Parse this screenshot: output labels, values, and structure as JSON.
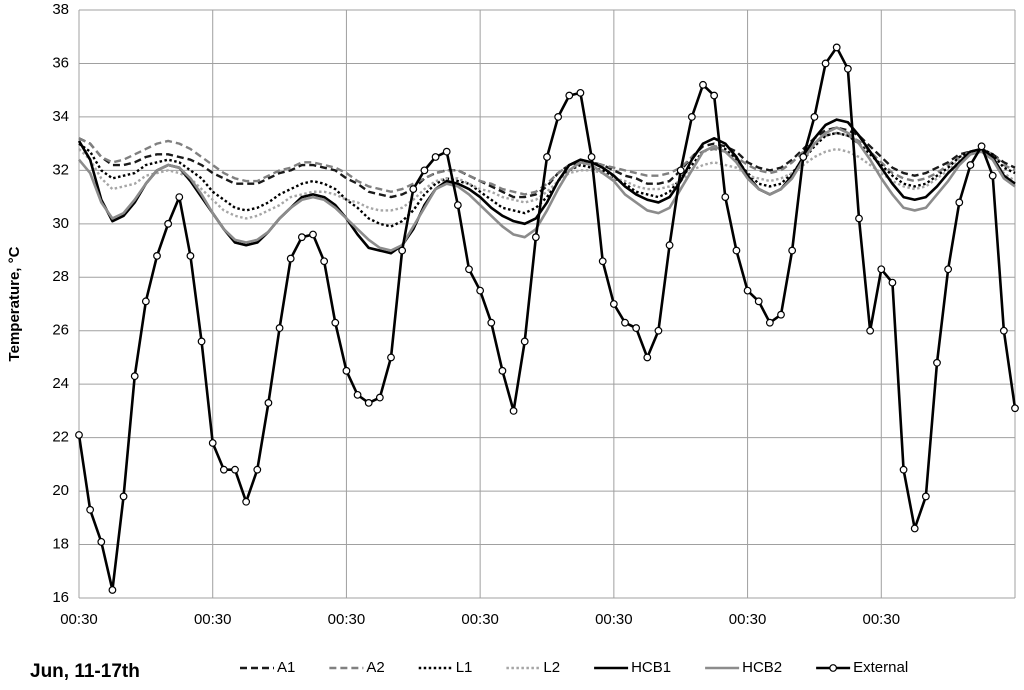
{
  "chart_data": {
    "type": "line",
    "ylabel": "Temperature, °C",
    "xlabel": "Jun, 11-17th",
    "xlim": [
      0,
      168
    ],
    "xticks": [
      {
        "value": 0,
        "label": "00:30"
      },
      {
        "value": 24,
        "label": "00:30"
      },
      {
        "value": 48,
        "label": "00:30"
      },
      {
        "value": 72,
        "label": "00:30"
      },
      {
        "value": 96,
        "label": "00:30"
      },
      {
        "value": 120,
        "label": "00:30"
      },
      {
        "value": 144,
        "label": "00:30"
      }
    ],
    "ylim": [
      16,
      38
    ],
    "yticks": [
      16,
      18,
      20,
      22,
      24,
      26,
      28,
      30,
      32,
      34,
      36,
      38
    ],
    "grid": true,
    "legend": "bottom",
    "x": [
      0,
      2,
      4,
      6,
      8,
      10,
      12,
      14,
      16,
      18,
      20,
      22,
      24,
      26,
      28,
      30,
      32,
      34,
      36,
      38,
      40,
      42,
      44,
      46,
      48,
      50,
      52,
      54,
      56,
      58,
      60,
      62,
      64,
      66,
      68,
      70,
      72,
      74,
      76,
      78,
      80,
      82,
      84,
      86,
      88,
      90,
      92,
      94,
      96,
      98,
      100,
      102,
      104,
      106,
      108,
      110,
      112,
      114,
      116,
      118,
      120,
      122,
      124,
      126,
      128,
      130,
      132,
      134,
      136,
      138,
      140,
      142,
      144,
      146,
      148,
      150,
      152,
      154,
      156,
      158,
      160,
      162,
      164,
      166,
      168
    ],
    "series": [
      {
        "name": "A1",
        "color": "#1a1a1a",
        "style": "dashed",
        "values": [
          33.2,
          33.0,
          32.5,
          32.2,
          32.2,
          32.3,
          32.5,
          32.6,
          32.6,
          32.5,
          32.4,
          32.2,
          31.9,
          31.7,
          31.5,
          31.5,
          31.5,
          31.7,
          31.9,
          32.0,
          32.2,
          32.2,
          32.1,
          32.0,
          31.7,
          31.5,
          31.2,
          31.1,
          31.0,
          31.1,
          31.3,
          31.7,
          31.9,
          32.0,
          32.0,
          31.8,
          31.6,
          31.4,
          31.2,
          31.0,
          31.0,
          31.1,
          31.4,
          31.9,
          32.2,
          32.3,
          32.3,
          32.2,
          32.0,
          31.8,
          31.7,
          31.5,
          31.5,
          31.6,
          32.0,
          32.5,
          32.9,
          33.0,
          32.9,
          32.7,
          32.3,
          32.1,
          32.0,
          32.1,
          32.4,
          32.8,
          33.2,
          33.5,
          33.6,
          33.5,
          33.3,
          32.9,
          32.5,
          32.1,
          31.9,
          31.8,
          31.9,
          32.1,
          32.3,
          32.6,
          32.7,
          32.8,
          32.6,
          32.3,
          32.1
        ]
      },
      {
        "name": "A2",
        "color": "#808080",
        "style": "dashed",
        "values": [
          33.2,
          33.0,
          32.5,
          32.3,
          32.4,
          32.6,
          32.8,
          33.0,
          33.1,
          33.0,
          32.8,
          32.5,
          32.2,
          31.9,
          31.7,
          31.6,
          31.6,
          31.8,
          32.0,
          32.1,
          32.3,
          32.3,
          32.2,
          32.1,
          31.9,
          31.6,
          31.4,
          31.3,
          31.2,
          31.3,
          31.5,
          31.7,
          31.9,
          32.0,
          32.0,
          31.8,
          31.6,
          31.5,
          31.3,
          31.2,
          31.1,
          31.2,
          31.5,
          31.9,
          32.2,
          32.3,
          32.3,
          32.2,
          32.1,
          32.0,
          31.9,
          31.8,
          31.8,
          31.9,
          32.1,
          32.5,
          32.7,
          32.8,
          32.7,
          32.5,
          32.2,
          32.0,
          31.9,
          32.0,
          32.3,
          32.7,
          33.0,
          33.3,
          33.4,
          33.3,
          33.1,
          32.7,
          32.3,
          31.9,
          31.7,
          31.6,
          31.7,
          31.9,
          32.2,
          32.5,
          32.7,
          32.8,
          32.6,
          32.2,
          32.0
        ]
      },
      {
        "name": "L1",
        "color": "#000000",
        "style": "dotted",
        "values": [
          33.0,
          32.7,
          32.0,
          31.7,
          31.8,
          31.9,
          32.2,
          32.3,
          32.4,
          32.3,
          32.0,
          31.7,
          31.2,
          30.9,
          30.6,
          30.5,
          30.6,
          30.8,
          31.1,
          31.3,
          31.5,
          31.6,
          31.5,
          31.3,
          30.9,
          30.6,
          30.2,
          30.0,
          29.9,
          30.1,
          30.5,
          31.1,
          31.5,
          31.7,
          31.6,
          31.5,
          31.2,
          30.9,
          30.6,
          30.5,
          30.4,
          30.6,
          31.0,
          31.6,
          32.0,
          32.2,
          32.1,
          32.0,
          31.7,
          31.5,
          31.2,
          31.1,
          31.0,
          31.2,
          31.7,
          32.2,
          32.7,
          32.9,
          32.8,
          32.4,
          31.9,
          31.5,
          31.4,
          31.5,
          31.9,
          32.4,
          32.9,
          33.3,
          33.4,
          33.3,
          33.0,
          32.6,
          32.2,
          31.8,
          31.5,
          31.4,
          31.5,
          31.8,
          32.1,
          32.5,
          32.7,
          32.8,
          32.6,
          32.1,
          31.9
        ]
      },
      {
        "name": "L2",
        "color": "#a6a6a6",
        "style": "dotted",
        "values": [
          32.8,
          32.4,
          31.7,
          31.3,
          31.4,
          31.5,
          31.8,
          31.9,
          32.0,
          31.9,
          31.7,
          31.3,
          30.9,
          30.5,
          30.3,
          30.2,
          30.3,
          30.5,
          30.7,
          31.0,
          31.1,
          31.2,
          31.2,
          31.1,
          30.9,
          30.8,
          30.6,
          30.5,
          30.5,
          30.6,
          30.9,
          31.3,
          31.6,
          31.7,
          31.7,
          31.5,
          31.3,
          31.2,
          31.0,
          30.9,
          30.8,
          30.9,
          31.2,
          31.6,
          31.9,
          32.0,
          32.0,
          31.9,
          31.7,
          31.6,
          31.4,
          31.3,
          31.3,
          31.4,
          31.6,
          32.0,
          32.2,
          32.3,
          32.2,
          32.1,
          31.8,
          31.7,
          31.6,
          31.7,
          31.9,
          32.2,
          32.5,
          32.7,
          32.8,
          32.7,
          32.5,
          32.2,
          31.9,
          31.6,
          31.4,
          31.3,
          31.4,
          31.7,
          32.0,
          32.4,
          32.6,
          32.7,
          32.4,
          31.9,
          31.6
        ]
      },
      {
        "name": "HCB1",
        "color": "#000000",
        "style": "solid",
        "values": [
          33.1,
          32.4,
          30.9,
          30.1,
          30.3,
          30.8,
          31.5,
          32.0,
          32.2,
          32.1,
          31.6,
          31.0,
          30.4,
          29.8,
          29.3,
          29.2,
          29.3,
          29.7,
          30.2,
          30.6,
          31.0,
          31.1,
          31.0,
          30.7,
          30.2,
          29.6,
          29.1,
          29.0,
          28.9,
          29.2,
          29.8,
          30.7,
          31.3,
          31.6,
          31.5,
          31.3,
          31.0,
          30.6,
          30.3,
          30.1,
          30.0,
          30.2,
          30.8,
          31.6,
          32.2,
          32.4,
          32.3,
          32.1,
          31.8,
          31.4,
          31.1,
          30.9,
          30.8,
          31.0,
          31.6,
          32.4,
          33.0,
          33.2,
          33.0,
          32.5,
          31.8,
          31.3,
          31.1,
          31.3,
          31.8,
          32.5,
          33.2,
          33.7,
          33.9,
          33.8,
          33.3,
          32.7,
          32.1,
          31.5,
          31.0,
          30.9,
          31.0,
          31.4,
          31.9,
          32.3,
          32.7,
          32.8,
          32.5,
          31.8,
          31.5
        ]
      },
      {
        "name": "HCB2",
        "color": "#8c8c8c",
        "style": "solid",
        "values": [
          32.4,
          31.9,
          30.8,
          30.2,
          30.4,
          30.9,
          31.5,
          32.0,
          32.2,
          32.1,
          31.7,
          31.1,
          30.4,
          29.8,
          29.4,
          29.3,
          29.4,
          29.7,
          30.2,
          30.6,
          30.9,
          31.0,
          30.9,
          30.6,
          30.2,
          29.8,
          29.4,
          29.1,
          29.0,
          29.2,
          29.9,
          30.6,
          31.3,
          31.5,
          31.4,
          31.1,
          30.7,
          30.3,
          29.9,
          29.6,
          29.5,
          29.8,
          30.5,
          31.3,
          32.0,
          32.3,
          32.2,
          31.9,
          31.6,
          31.1,
          30.8,
          30.5,
          30.4,
          30.6,
          31.3,
          32.0,
          32.7,
          32.9,
          32.7,
          32.3,
          31.7,
          31.3,
          31.1,
          31.3,
          31.7,
          32.4,
          33.0,
          33.4,
          33.6,
          33.4,
          33.0,
          32.4,
          31.7,
          31.1,
          30.6,
          30.5,
          30.6,
          31.1,
          31.6,
          32.2,
          32.6,
          32.7,
          32.4,
          31.7,
          31.4
        ]
      },
      {
        "name": "External",
        "color": "#000000",
        "style": "solid",
        "marker": "circle",
        "values": [
          22.1,
          19.3,
          18.1,
          16.3,
          19.8,
          24.3,
          27.1,
          28.8,
          30.0,
          31.0,
          28.8,
          25.6,
          21.8,
          20.8,
          20.8,
          19.6,
          20.8,
          23.3,
          26.1,
          28.7,
          29.5,
          29.6,
          28.6,
          26.3,
          24.5,
          23.6,
          23.3,
          23.5,
          25.0,
          29.0,
          31.3,
          32.0,
          32.5,
          32.7,
          30.7,
          28.3,
          27.5,
          26.3,
          24.5,
          23.0,
          25.6,
          29.5,
          32.5,
          34.0,
          34.8,
          34.9,
          32.5,
          28.6,
          27.0,
          26.3,
          26.1,
          25.0,
          26.0,
          29.2,
          32.0,
          34.0,
          35.2,
          34.8,
          31.0,
          29.0,
          27.5,
          27.1,
          26.3,
          26.6,
          29.0,
          32.5,
          34.0,
          36.0,
          36.6,
          35.8,
          30.2,
          26.0,
          28.3,
          27.8,
          20.8,
          18.6,
          19.8,
          24.8,
          28.3,
          30.8,
          32.2,
          32.9,
          31.8,
          26.0,
          23.1
        ]
      }
    ]
  }
}
